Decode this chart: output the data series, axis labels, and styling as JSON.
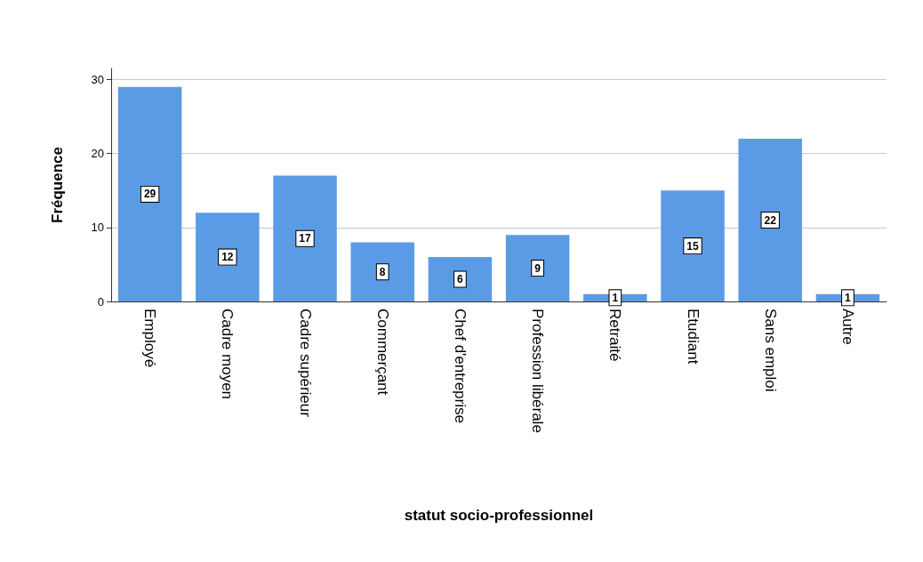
{
  "chart_data": {
    "type": "bar",
    "xlabel": "statut socio-professionnel",
    "ylabel": "Fréquence",
    "categories": [
      "Employé",
      "Cadre moyen",
      "Cadre supérieur",
      "Commerçant",
      "Chef d'entreprise",
      "Profession libérale",
      "Retraité",
      "Etudiant",
      "Sans emploi",
      "Autre"
    ],
    "values": [
      29,
      12,
      17,
      8,
      6,
      9,
      1,
      15,
      22,
      1
    ],
    "color": "#5b9be6",
    "ylim": [
      0,
      31.5
    ],
    "yticks": [
      0,
      10,
      20,
      30
    ],
    "grid": "y",
    "data_labels": true
  }
}
